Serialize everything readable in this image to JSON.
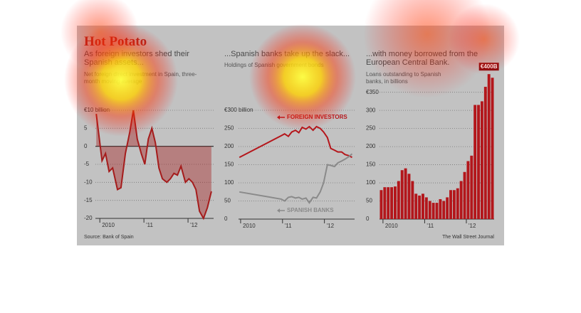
{
  "title": "Hot Potato",
  "source": "Source: Bank of Spain",
  "credit": "The Wall Street Journal",
  "chart_data": [
    {
      "type": "area",
      "title": "As foreign investors shed their Spanish assets...",
      "subtitle": "Net foreign direct investment in Spain, three-month moving average",
      "color": "#a51c1c",
      "x": [
        2009.92,
        2010.05,
        2010.13,
        2010.21,
        2010.29,
        2010.4,
        2010.48,
        2010.58,
        2010.68,
        2010.76,
        2010.85,
        2010.94,
        2011.02,
        2011.1,
        2011.18,
        2011.26,
        2011.34,
        2011.42,
        2011.52,
        2011.6,
        2011.68,
        2011.76,
        2011.84,
        2011.94,
        2012.02,
        2012.1,
        2012.18,
        2012.26,
        2012.35,
        2012.44,
        2012.53
      ],
      "values": [
        9,
        -4,
        -2,
        -7,
        -6,
        -12,
        -11.5,
        -2,
        4,
        10,
        2,
        -2,
        -5,
        2,
        5,
        1,
        -6,
        -9,
        -10,
        -9,
        -7.5,
        -8,
        -5.5,
        -10,
        -9,
        -10,
        -12,
        -18,
        -20,
        -17,
        -12.5
      ],
      "xlim": [
        2009.9,
        2012.58
      ],
      "xticks": [
        {
          "value": 2010,
          "label": "2010"
        },
        {
          "value": 2011,
          "label": "'11"
        },
        {
          "value": 2012,
          "label": "'12"
        }
      ],
      "ylim": [
        -20,
        10
      ],
      "yticks": [
        -20,
        -15,
        -10,
        -5,
        0,
        5,
        {
          "value": 10,
          "label": "€10 billion"
        }
      ],
      "grid": true
    },
    {
      "type": "line",
      "title": "...Spanish banks take up the slack...",
      "subtitle": "Holdings of Spanish government bonds",
      "x": [
        2009.97,
        2010.97,
        2011.05,
        2011.14,
        2011.22,
        2011.31,
        2011.39,
        2011.47,
        2011.56,
        2011.64,
        2011.73,
        2011.81,
        2011.9,
        2011.98,
        2012.07,
        2012.15,
        2012.24,
        2012.32,
        2012.41,
        2012.49,
        2012.58,
        2012.66
      ],
      "series": [
        {
          "name": "FOREIGN INVESTORS",
          "color": "#b5161b",
          "values": [
            170,
            230,
            235,
            228,
            240,
            245,
            238,
            253,
            248,
            255,
            245,
            255,
            250,
            240,
            225,
            195,
            190,
            185,
            185,
            178,
            175,
            170
          ]
        },
        {
          "name": "SPANISH BANKS",
          "color": "#8a8a8a",
          "values": [
            75,
            55,
            50,
            60,
            62,
            58,
            60,
            55,
            58,
            45,
            60,
            58,
            75,
            100,
            150,
            148,
            145,
            155,
            160,
            165,
            172,
            180
          ]
        }
      ],
      "xlim": [
        2009.95,
        2012.72
      ],
      "xticks": [
        {
          "value": 2010,
          "label": "2010"
        },
        {
          "value": 2011,
          "label": "'11"
        },
        {
          "value": 2012,
          "label": "'12"
        }
      ],
      "ylim": [
        0,
        300
      ],
      "yticks": [
        0,
        50,
        100,
        150,
        200,
        250,
        {
          "value": 300,
          "label": "€300 billion"
        }
      ],
      "grid": true
    },
    {
      "type": "bar",
      "title": "...with money borrowed from the European Central Bank.",
      "subtitle": "Loans outstanding to Spanish banks, in billions",
      "color": "#b3161b",
      "categories": [
        null,
        "2010",
        null,
        null,
        null,
        null,
        null,
        null,
        null,
        null,
        null,
        null,
        null,
        "'11",
        null,
        null,
        null,
        null,
        null,
        null,
        null,
        null,
        null,
        null,
        null,
        "'12",
        null,
        null,
        null,
        null,
        null,
        null,
        null
      ],
      "values": [
        80,
        88,
        88,
        88,
        90,
        105,
        135,
        140,
        125,
        105,
        70,
        65,
        70,
        60,
        50,
        45,
        45,
        55,
        50,
        60,
        80,
        80,
        85,
        105,
        130,
        160,
        175,
        315,
        315,
        325,
        365,
        400,
        390
      ],
      "value_labels": [
        null,
        null,
        null,
        null,
        null,
        null,
        null,
        null,
        null,
        null,
        null,
        null,
        null,
        null,
        null,
        null,
        null,
        null,
        null,
        null,
        null,
        null,
        null,
        null,
        null,
        null,
        null,
        null,
        null,
        null,
        null,
        "€400B",
        null
      ],
      "ylim": [
        0,
        420
      ],
      "yticks": [
        0,
        50,
        100,
        150,
        200,
        250,
        300,
        {
          "value": 350,
          "label": "€350"
        }
      ],
      "grid": true
    }
  ]
}
